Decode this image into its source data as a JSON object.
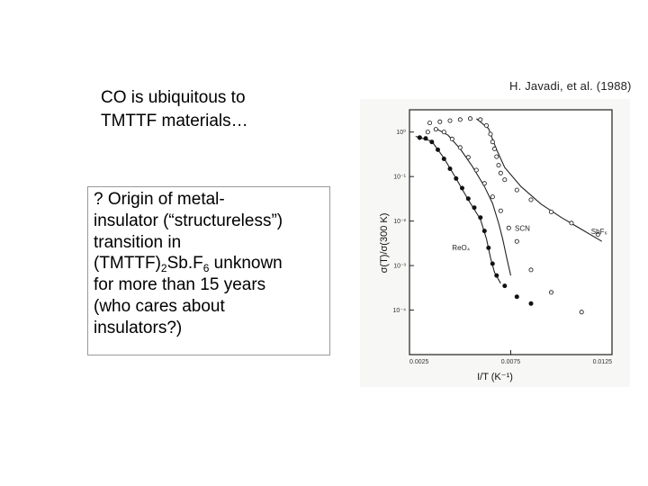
{
  "slide": {
    "intro_lines": [
      "CO is ubiquitous to",
      "TMTTF materials…"
    ],
    "box": {
      "line1": "? Origin of  metal-",
      "line2": "insulator (“structureless”)",
      "line3": "transition in",
      "line4_pre": "(TMTTF)",
      "line4_sub1": "2",
      "line4_mid": "Sb.F",
      "line4_sub2": "6",
      "line4_post": " unknown",
      "line5": "for more than 15 years",
      "line6": "(who cares about",
      "line7": "insulators?)"
    },
    "citation": "H. Javadi,  et al. (1988)"
  },
  "chart_data": {
    "type": "scatter",
    "xlabel": "I/T (K⁻¹)",
    "ylabel": "σ(T)/σ(300 K)",
    "xlim": [
      0.0025,
      0.0125
    ],
    "ylim_log10": [
      -5,
      0.5
    ],
    "y_scale": "log",
    "x_ticks": [
      {
        "value": 0.0025,
        "label": "0.0025"
      },
      {
        "value": 0.0075,
        "label": "0.0075"
      },
      {
        "value": 0.0125,
        "label": "0.0125"
      }
    ],
    "y_ticks": [
      {
        "value": 1,
        "label": "10⁰"
      },
      {
        "value": 0.1,
        "label": "10⁻¹"
      },
      {
        "value": 0.01,
        "label": "10⁻²"
      },
      {
        "value": 0.001,
        "label": "10⁻³"
      },
      {
        "value": 0.0001,
        "label": "10⁻⁴"
      }
    ],
    "series": [
      {
        "name": "SbF₆",
        "marker": "open-circle",
        "points": [
          [
            0.0035,
            1.6
          ],
          [
            0.004,
            1.7
          ],
          [
            0.0045,
            1.8
          ],
          [
            0.005,
            1.9
          ],
          [
            0.0055,
            2.0
          ],
          [
            0.006,
            1.9
          ],
          [
            0.0063,
            1.4
          ],
          [
            0.0065,
            0.9
          ],
          [
            0.0066,
            0.6
          ],
          [
            0.0067,
            0.42
          ],
          [
            0.0068,
            0.28
          ],
          [
            0.0069,
            0.18
          ],
          [
            0.007,
            0.12
          ],
          [
            0.0072,
            0.085
          ],
          [
            0.0078,
            0.05
          ],
          [
            0.0085,
            0.03
          ],
          [
            0.0095,
            0.016
          ],
          [
            0.0105,
            0.009
          ],
          [
            0.0118,
            0.005
          ]
        ],
        "fit": [
          [
            0.0058,
            2.0
          ],
          [
            0.0064,
            1.2
          ],
          [
            0.0068,
            0.4
          ],
          [
            0.0072,
            0.16
          ],
          [
            0.008,
            0.06
          ],
          [
            0.009,
            0.024
          ],
          [
            0.01,
            0.012
          ],
          [
            0.011,
            0.0065
          ],
          [
            0.012,
            0.0035
          ]
        ]
      },
      {
        "name": "SCN",
        "marker": "open-circle",
        "points": [
          [
            0.003,
            0.75
          ],
          [
            0.0034,
            1.0
          ],
          [
            0.0038,
            1.15
          ],
          [
            0.0042,
            1.0
          ],
          [
            0.0046,
            0.7
          ],
          [
            0.005,
            0.45
          ],
          [
            0.0054,
            0.27
          ],
          [
            0.0058,
            0.14
          ],
          [
            0.0062,
            0.07
          ],
          [
            0.0066,
            0.035
          ],
          [
            0.007,
            0.017
          ],
          [
            0.0074,
            0.007
          ],
          [
            0.0078,
            0.0035
          ],
          [
            0.0085,
            0.0008
          ],
          [
            0.0095,
            0.00025
          ],
          [
            0.011,
            9e-05
          ]
        ],
        "fit": [
          [
            0.0038,
            1.2
          ],
          [
            0.0044,
            0.85
          ],
          [
            0.005,
            0.42
          ],
          [
            0.0056,
            0.17
          ],
          [
            0.0062,
            0.06
          ],
          [
            0.0066,
            0.025
          ],
          [
            0.0069,
            0.009
          ],
          [
            0.0071,
            0.004
          ],
          [
            0.0073,
            0.0015
          ],
          [
            0.0075,
            0.0006
          ]
        ]
      },
      {
        "name": "ReO₄",
        "marker": "filled-circle",
        "points": [
          [
            0.003,
            0.75
          ],
          [
            0.0033,
            0.72
          ],
          [
            0.0036,
            0.6
          ],
          [
            0.0039,
            0.4
          ],
          [
            0.0042,
            0.25
          ],
          [
            0.0045,
            0.15
          ],
          [
            0.0048,
            0.09
          ],
          [
            0.0051,
            0.055
          ],
          [
            0.0054,
            0.032
          ],
          [
            0.0057,
            0.02
          ],
          [
            0.006,
            0.012
          ],
          [
            0.0062,
            0.006
          ],
          [
            0.0064,
            0.0025
          ],
          [
            0.0066,
            0.0011
          ],
          [
            0.0068,
            0.0006
          ],
          [
            0.0072,
            0.00035
          ],
          [
            0.0078,
            0.0002
          ],
          [
            0.0085,
            0.00014
          ]
        ],
        "fit": [
          [
            0.0028,
            0.8
          ],
          [
            0.0036,
            0.62
          ],
          [
            0.0042,
            0.26
          ],
          [
            0.0048,
            0.09
          ],
          [
            0.0054,
            0.03
          ],
          [
            0.006,
            0.011
          ],
          [
            0.0063,
            0.004
          ],
          [
            0.0065,
            0.0015
          ],
          [
            0.0067,
            0.0007
          ],
          [
            0.007,
            0.0004
          ]
        ]
      }
    ]
  }
}
